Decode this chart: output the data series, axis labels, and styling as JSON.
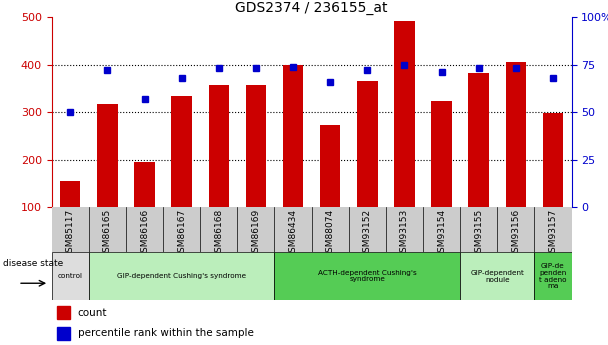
{
  "title": "GDS2374 / 236155_at",
  "samples": [
    "GSM85117",
    "GSM86165",
    "GSM86166",
    "GSM86167",
    "GSM86168",
    "GSM86169",
    "GSM86434",
    "GSM88074",
    "GSM93152",
    "GSM93153",
    "GSM93154",
    "GSM93155",
    "GSM93156",
    "GSM93157"
  ],
  "counts": [
    155,
    318,
    195,
    335,
    358,
    358,
    400,
    272,
    365,
    493,
    323,
    383,
    405,
    298
  ],
  "percentiles": [
    50,
    72,
    57,
    68,
    73,
    73,
    74,
    66,
    72,
    75,
    71,
    73,
    73,
    68
  ],
  "ylim_left": [
    100,
    500
  ],
  "ylim_right": [
    0,
    100
  ],
  "yticks_left": [
    100,
    200,
    300,
    400,
    500
  ],
  "yticks_right": [
    0,
    25,
    50,
    75,
    100
  ],
  "bar_color": "#cc0000",
  "dot_color": "#0000cc",
  "groups": [
    {
      "label": "control",
      "start": 0,
      "end": 1,
      "color": "#dddddd"
    },
    {
      "label": "GIP-dependent Cushing's syndrome",
      "start": 1,
      "end": 6,
      "color": "#bbeebb"
    },
    {
      "label": "ACTH-dependent Cushing's\nsyndrome",
      "start": 6,
      "end": 11,
      "color": "#55cc55"
    },
    {
      "label": "GIP-dependent\nnodule",
      "start": 11,
      "end": 13,
      "color": "#bbeebb"
    },
    {
      "label": "GIP-de\npenden\nt adeno\nma",
      "start": 13,
      "end": 14,
      "color": "#55cc55"
    }
  ],
  "disease_state_label": "disease state",
  "legend_count_label": "count",
  "legend_percentile_label": "percentile rank within the sample",
  "right_axis_label_color": "#0000cc",
  "left_axis_label_color": "#cc0000",
  "dotted_line_color": "#000000",
  "chart_bg_color": "#ffffff",
  "xtick_area_color": "#cccccc",
  "figure_bg_color": "#ffffff"
}
